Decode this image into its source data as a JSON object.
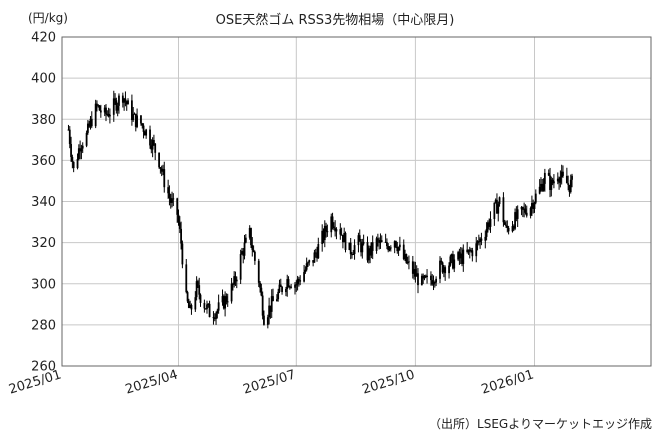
{
  "chart_data": {
    "type": "candlestick",
    "title": "OSE天然ゴム RSS3先物相場（中心限月)",
    "unit_label": "(円/kg)",
    "source": "（出所）LSEGよりマーケットエッジ作成",
    "xlabel": "",
    "ylabel": "",
    "ylim": [
      260,
      420
    ],
    "y_ticks": [
      260,
      280,
      300,
      320,
      340,
      360,
      380,
      400,
      420
    ],
    "x_ticks": [
      "2025/01",
      "2025/04",
      "2025/07",
      "2025/10",
      "2026/01"
    ],
    "x_range": [
      "2025/01",
      "2026/04"
    ],
    "grid": true,
    "legend": "none",
    "colors": {
      "series": "#000000",
      "grid": "#c8c8c8",
      "frame": "#666666"
    },
    "series": [
      {
        "points": [
          [
            "2025/01/06",
            375
          ],
          [
            "2025/01/10",
            355
          ],
          [
            "2025/01/15",
            368
          ],
          [
            "2025/01/20",
            372
          ],
          [
            "2025/01/24",
            380
          ],
          [
            "2025/01/28",
            386
          ],
          [
            "2025/02/03",
            382
          ],
          [
            "2025/02/07",
            384
          ],
          [
            "2025/02/12",
            388
          ],
          [
            "2025/02/17",
            392
          ],
          [
            "2025/02/21",
            386
          ],
          [
            "2025/02/26",
            380
          ],
          [
            "2025/03/03",
            378
          ],
          [
            "2025/03/07",
            374
          ],
          [
            "2025/03/12",
            368
          ],
          [
            "2025/03/17",
            360
          ],
          [
            "2025/03/21",
            350
          ],
          [
            "2025/03/26",
            340
          ],
          [
            "2025/03/31",
            334
          ],
          [
            "2025/04/03",
            320
          ],
          [
            "2025/04/07",
            292
          ],
          [
            "2025/04/10",
            286
          ],
          [
            "2025/04/15",
            298
          ],
          [
            "2025/04/21",
            290
          ],
          [
            "2025/04/25",
            286
          ],
          [
            "2025/05/01",
            287
          ],
          [
            "2025/05/08",
            293
          ],
          [
            "2025/05/14",
            300
          ],
          [
            "2025/05/20",
            315
          ],
          [
            "2025/05/26",
            324
          ],
          [
            "2025/06/02",
            302
          ],
          [
            "2025/06/06",
            284
          ],
          [
            "2025/06/12",
            290
          ],
          [
            "2025/06/18",
            296
          ],
          [
            "2025/06/24",
            302
          ],
          [
            "2025/07/01",
            300
          ],
          [
            "2025/07/07",
            306
          ],
          [
            "2025/07/14",
            312
          ],
          [
            "2025/07/21",
            322
          ],
          [
            "2025/07/28",
            332
          ],
          [
            "2025/08/04",
            326
          ],
          [
            "2025/08/11",
            316
          ],
          [
            "2025/08/18",
            320
          ],
          [
            "2025/08/25",
            314
          ],
          [
            "2025/09/01",
            320
          ],
          [
            "2025/09/08",
            318
          ],
          [
            "2025/09/15",
            322
          ],
          [
            "2025/09/22",
            312
          ],
          [
            "2025/09/29",
            306
          ],
          [
            "2025/10/06",
            300
          ],
          [
            "2025/10/13",
            302
          ],
          [
            "2025/10/20",
            308
          ],
          [
            "2025/10/27",
            310
          ],
          [
            "2025/11/03",
            312
          ],
          [
            "2025/11/10",
            314
          ],
          [
            "2025/11/17",
            318
          ],
          [
            "2025/11/24",
            326
          ],
          [
            "2025/12/01",
            336
          ],
          [
            "2025/12/05",
            340
          ],
          [
            "2025/12/10",
            326
          ],
          [
            "2025/12/15",
            330
          ],
          [
            "2025/12/22",
            334
          ],
          [
            "2025/12/29",
            338
          ],
          [
            "2026/01/05",
            346
          ],
          [
            "2026/01/09",
            352
          ],
          [
            "2026/01/14",
            348
          ],
          [
            "2026/01/19",
            354
          ],
          [
            "2026/01/23",
            350
          ],
          [
            "2026/01/28",
            348
          ],
          [
            "2026/02/02",
            350
          ]
        ]
      }
    ]
  }
}
